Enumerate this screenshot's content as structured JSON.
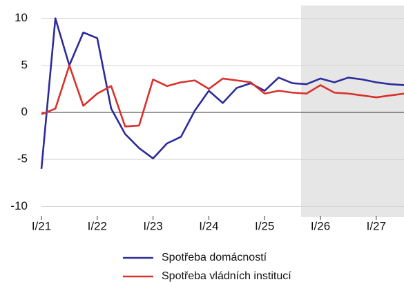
{
  "chart_data": {
    "type": "line",
    "categories": [
      "I/21",
      null,
      null,
      null,
      "I/22",
      null,
      null,
      null,
      "I/23",
      null,
      null,
      null,
      "I/24",
      null,
      null,
      null,
      "I/25",
      null,
      null,
      null,
      "I/26",
      null,
      null,
      null,
      "I/27",
      null,
      null
    ],
    "series": [
      {
        "name": "Spotřeba domácností",
        "color": "#2b2b9b",
        "values": [
          -6.0,
          10.0,
          5.0,
          8.5,
          7.9,
          0.4,
          -2.3,
          -3.8,
          -4.9,
          -3.3,
          -2.6,
          0.2,
          2.3,
          1.0,
          2.6,
          3.1,
          2.3,
          3.7,
          3.1,
          3.0,
          3.6,
          3.2,
          3.7,
          3.5,
          3.2,
          3.0,
          2.9
        ]
      },
      {
        "name": "Spotřeba vládních institucí",
        "color": "#d9312b",
        "values": [
          -0.2,
          0.4,
          5.0,
          0.7,
          2.0,
          2.8,
          -1.5,
          -1.4,
          3.5,
          2.8,
          3.2,
          3.4,
          2.5,
          3.6,
          3.4,
          3.2,
          2.0,
          2.3,
          2.1,
          2.0,
          2.9,
          2.1,
          2.0,
          1.8,
          1.6,
          1.8,
          2.0
        ]
      }
    ],
    "ylim": [
      -11,
      11
    ],
    "yticks": [
      -10,
      -5,
      0,
      5,
      10
    ],
    "grid": true
  }
}
